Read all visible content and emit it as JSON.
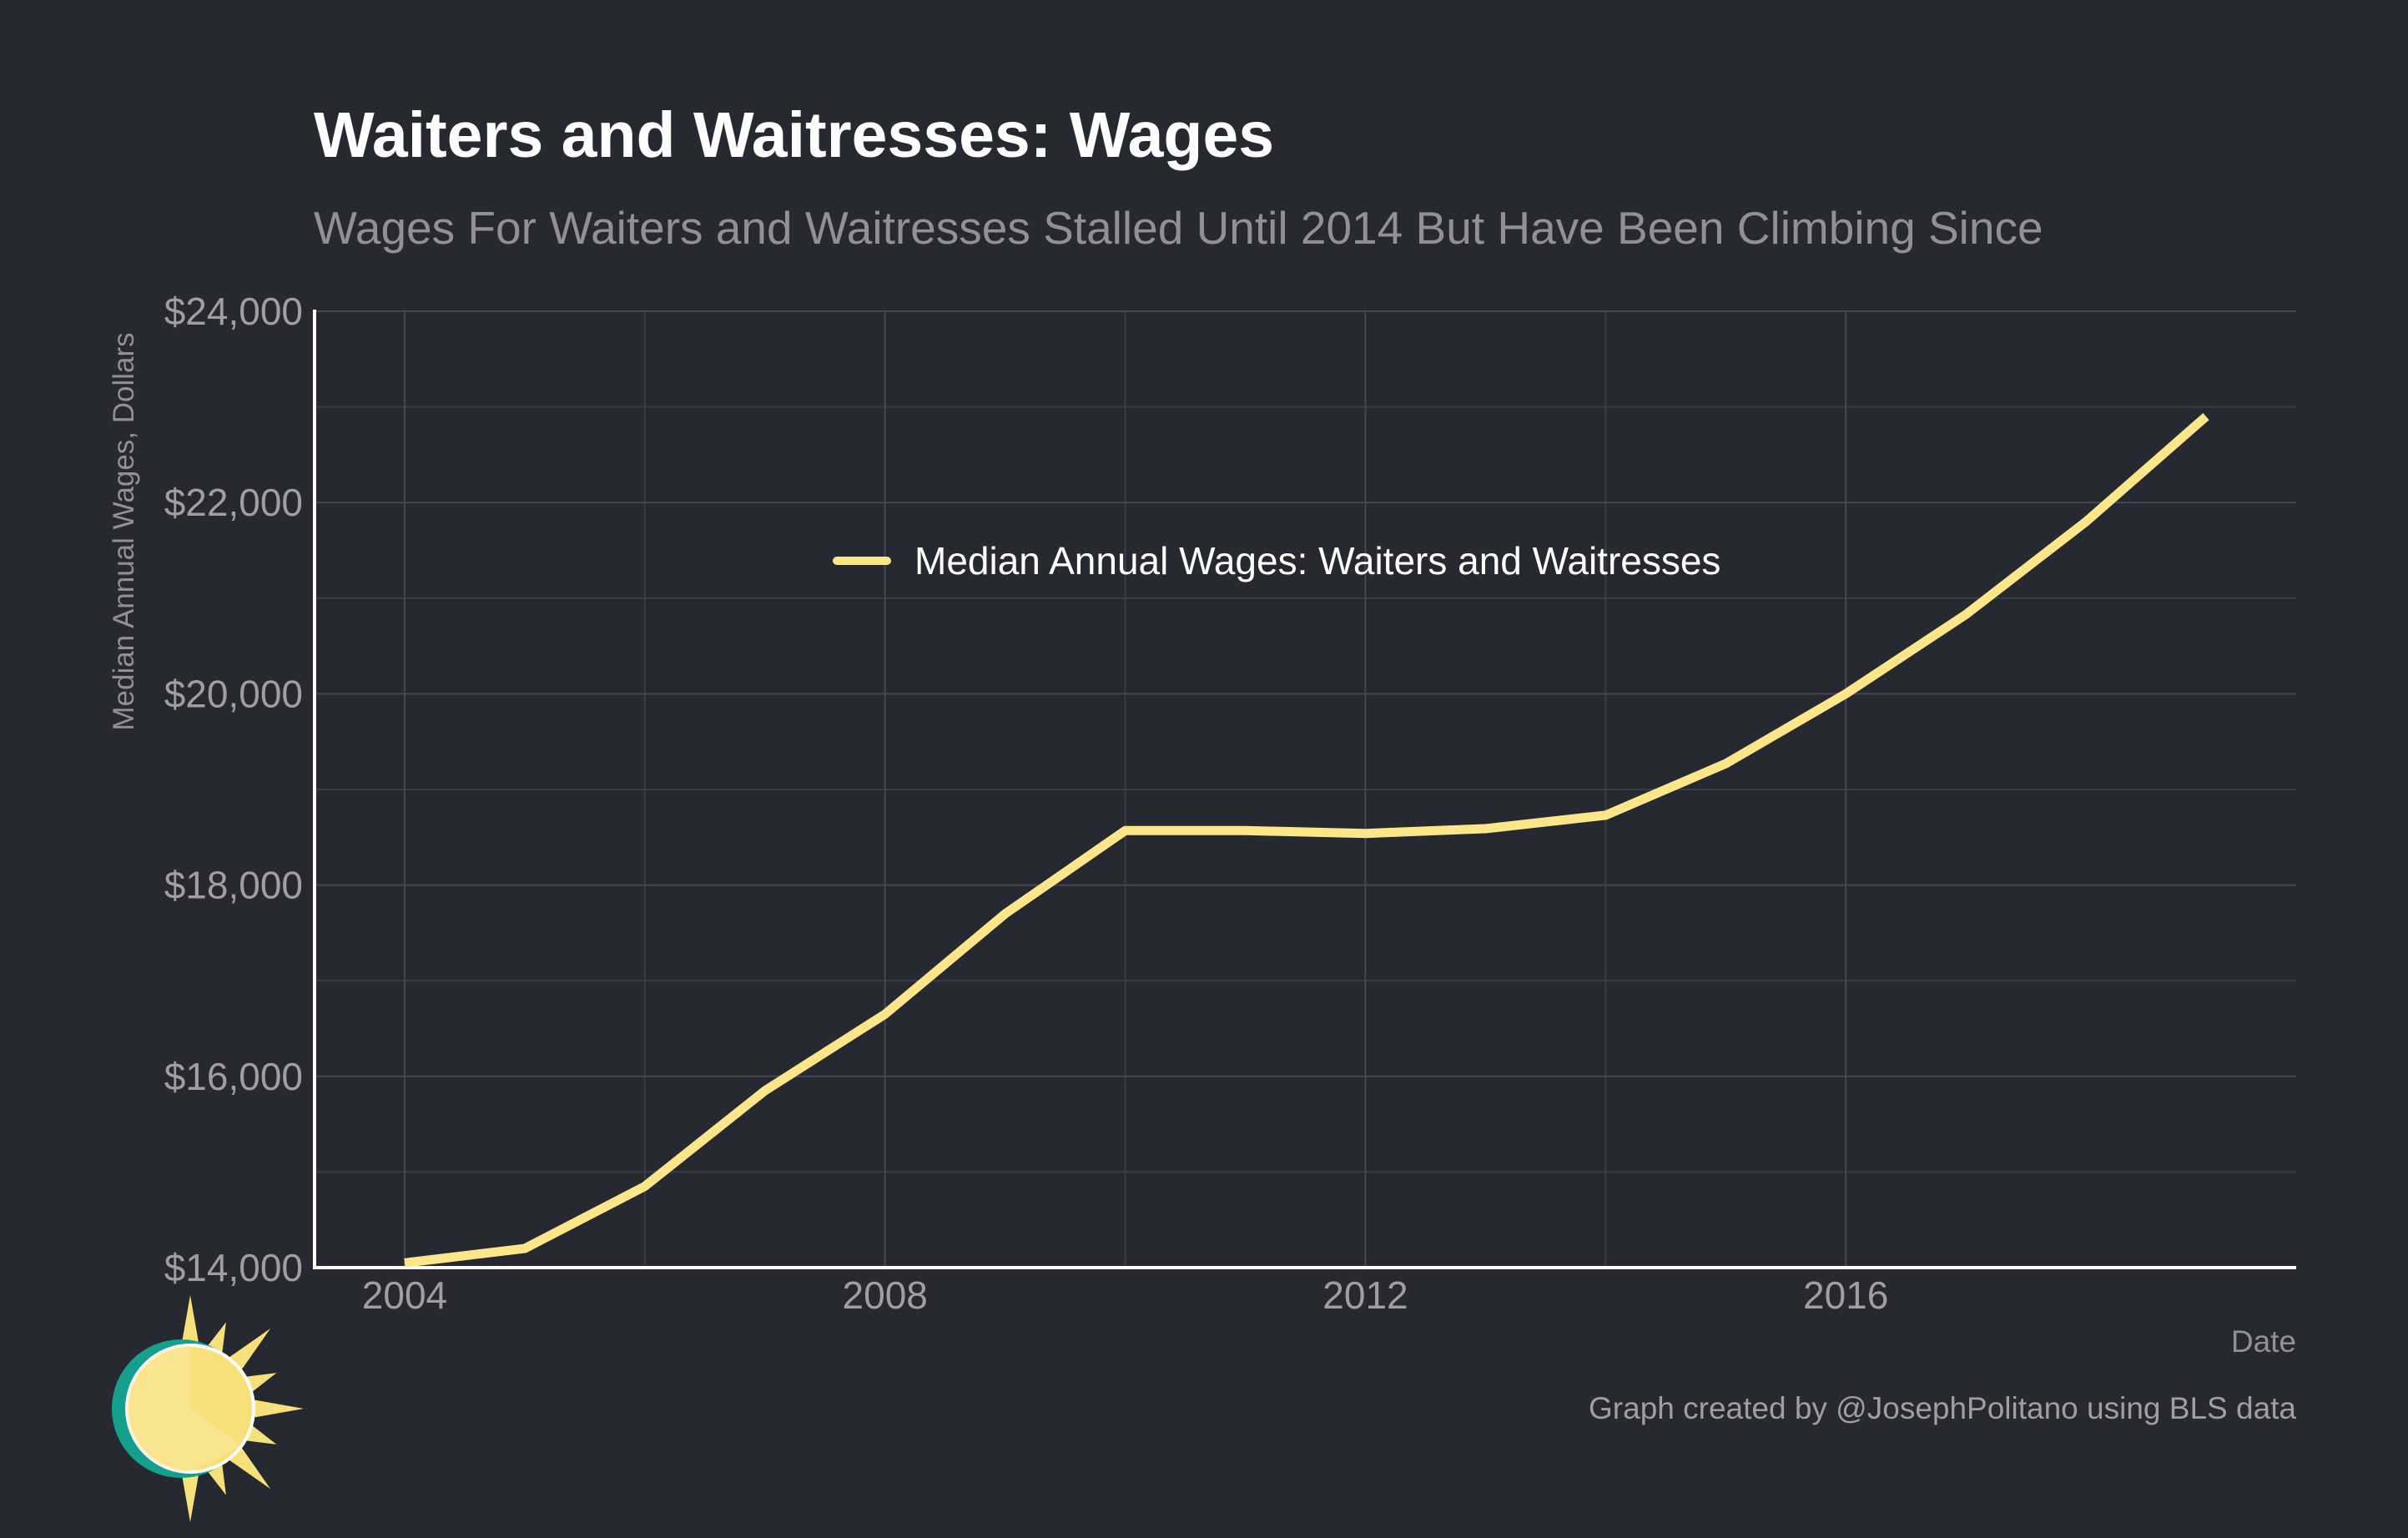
{
  "chart_data": {
    "type": "line",
    "title": "Waiters and Waitresses: Wages",
    "subtitle": "Wages For Waiters and Waitresses Stalled Until 2014 But Have Been Climbing Since",
    "xlabel": "Date",
    "ylabel": "Median Annual Wages, Dollars",
    "xlim": [
      2003.25,
      2019.75
    ],
    "ylim": [
      14000,
      24000
    ],
    "x_ticks": [
      2004,
      2008,
      2012,
      2016
    ],
    "x_tick_labels": [
      "2004",
      "2008",
      "2012",
      "2016"
    ],
    "y_ticks": [
      14000,
      16000,
      18000,
      20000,
      22000,
      24000
    ],
    "y_tick_labels": [
      "$14,000",
      "$16,000",
      "$18,000",
      "$20,000",
      "$22,000",
      "$24,000"
    ],
    "grid": true,
    "legend_position": "inside-top-center",
    "caption": "Graph created by @JosephPolitano using BLS data",
    "series": [
      {
        "name": "Median Annual Wages: Waiters and Waitresses",
        "color": "#fde68a",
        "x": [
          2004,
          2005,
          2006,
          2007,
          2008,
          2009,
          2010,
          2011,
          2012,
          2013,
          2014,
          2015,
          2016,
          2017,
          2018,
          2019
        ],
        "values": [
          14050,
          14200,
          14850,
          15850,
          16650,
          17700,
          18570,
          18570,
          18540,
          18590,
          18730,
          19270,
          20000,
          20830,
          21800,
          22900
        ]
      }
    ]
  },
  "logo": {
    "name": "sun-logo",
    "colors": {
      "ring": "#14a08c",
      "sun": "#f6e07a",
      "sun_light": "#fbe9a0"
    }
  }
}
